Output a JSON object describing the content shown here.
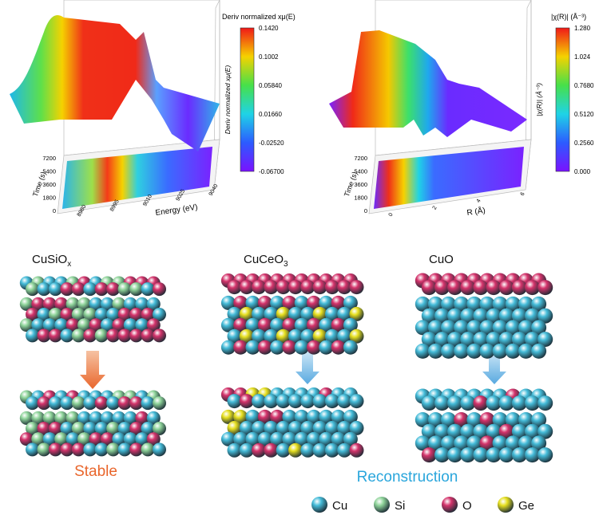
{
  "plots": [
    {
      "colorbar_title": "Deriv normalized xμ(E)",
      "colorbar_ticks": [
        "0.1420",
        "0.1002",
        "0.05840",
        "0.01660",
        "-0.02520",
        "-0.06700"
      ],
      "z_label": "Deriv normalized xμ(E)",
      "time_label": "Time (s)",
      "time_ticks": [
        "7200",
        "5400",
        "3600",
        "1800",
        "0"
      ],
      "x_label": "Energy (eV)",
      "x_ticks": [
        "8980",
        "8995",
        "9010",
        "9025",
        "9040"
      ]
    },
    {
      "colorbar_title": "|χ(R)| (Å⁻³)",
      "colorbar_ticks": [
        "1.280",
        "1.024",
        "0.7680",
        "0.5120",
        "0.2560",
        "0.000"
      ],
      "z_label": "|χ(R)| (Å⁻³)",
      "time_label": "Time (s)",
      "time_ticks": [
        "7200",
        "5400",
        "3600",
        "1800",
        "0"
      ],
      "x_label": "R (Å)",
      "x_ticks": [
        "0",
        "2",
        "4",
        "6"
      ]
    }
  ],
  "materials": [
    {
      "base": "CuSiO",
      "sub": "x"
    },
    {
      "base": "CuCeO",
      "sub": "3"
    },
    {
      "base": "CuO",
      "sub": ""
    }
  ],
  "outcomes": {
    "stable": "Stable",
    "reconstruction": "Reconstruction"
  },
  "legend": [
    {
      "label": "Cu",
      "color": "#45bcd9"
    },
    {
      "label": "Si",
      "color": "#8fd49a"
    },
    {
      "label": "O",
      "color": "#d4336b"
    },
    {
      "label": "Ge",
      "color": "#e6df1f"
    }
  ]
}
